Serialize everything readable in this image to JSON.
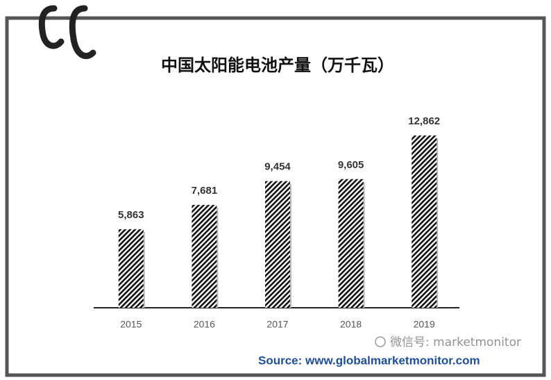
{
  "chart_data": {
    "type": "bar",
    "title": "中国太阳能电池产量（万千瓦）",
    "categories": [
      "2015",
      "2016",
      "2017",
      "2018",
      "2019"
    ],
    "values": [
      5863,
      7681,
      9454,
      9605,
      12862
    ],
    "value_labels": [
      "5,863",
      "7,681",
      "9,454",
      "9,605",
      "12,862"
    ],
    "color": "#111111",
    "source": "Source: www.globalmarketmonitor.com",
    "watermark": "微信号: marketmonitor"
  }
}
